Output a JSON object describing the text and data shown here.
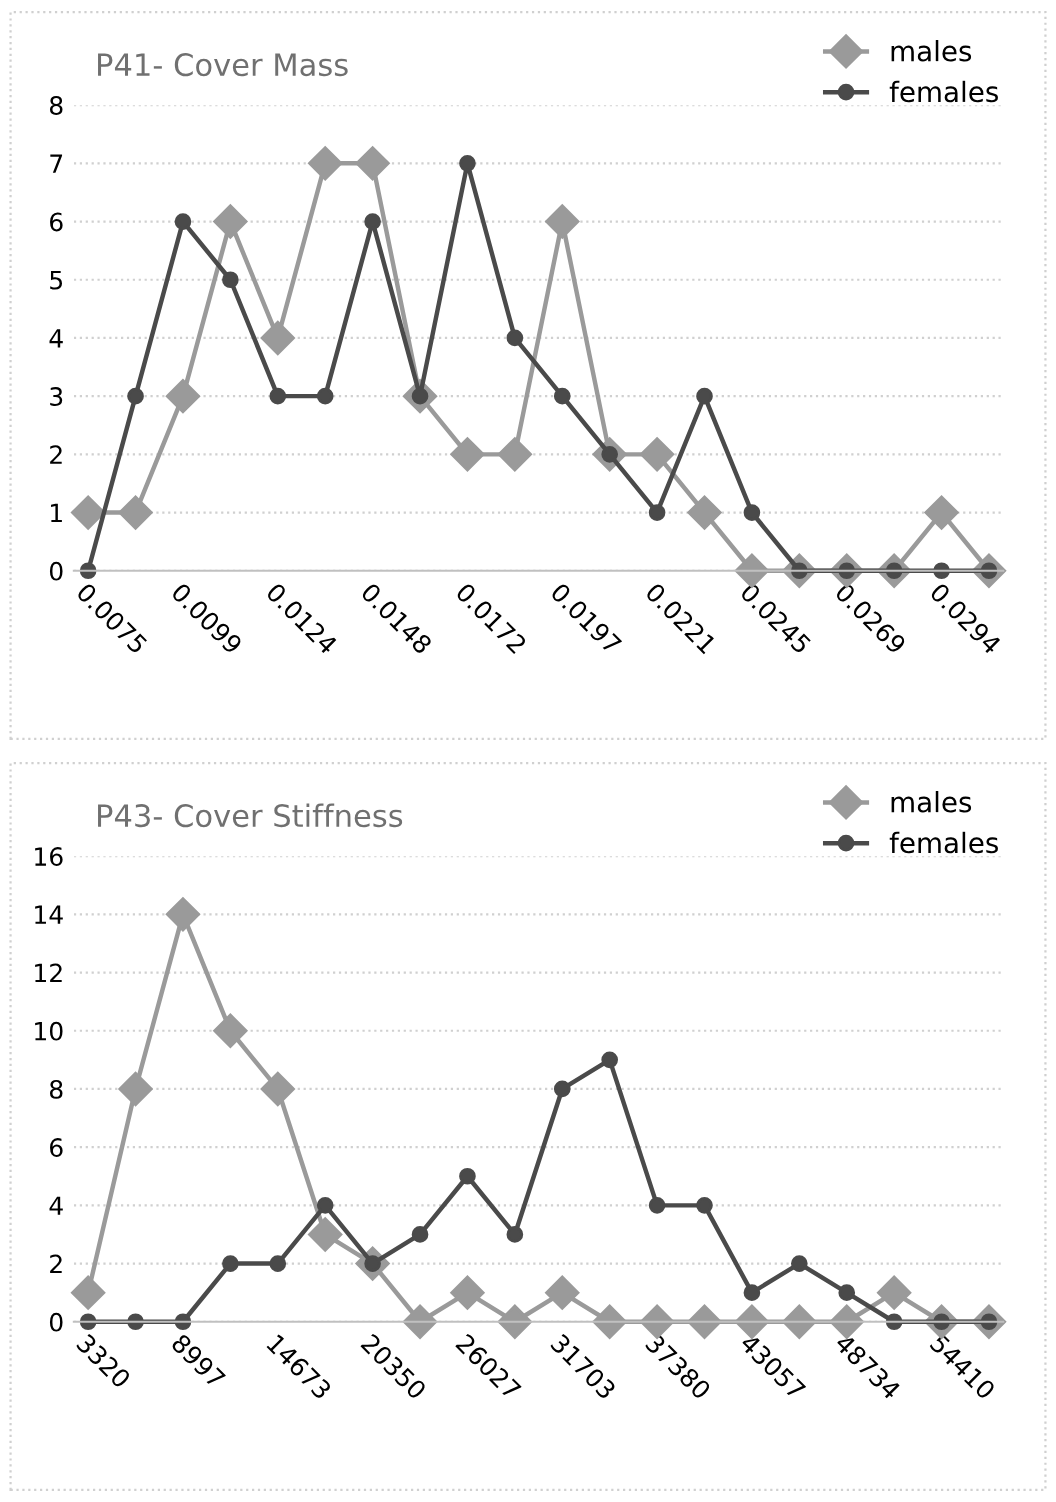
{
  "chart_data": [
    {
      "type": "line",
      "title": "P41- Cover Mass",
      "categories": [
        "0.0075",
        null,
        "0.0099",
        null,
        "0.0124",
        null,
        "0.0148",
        null,
        "0.0172",
        null,
        "0.0197",
        null,
        "0.0221",
        null,
        "0.0245",
        null,
        "0.0269",
        null,
        "0.0294",
        null
      ],
      "series": [
        {
          "name": "males",
          "color": "#9a9a9a",
          "marker": "diamond",
          "values": [
            1,
            1,
            3,
            6,
            4,
            7,
            7,
            3,
            2,
            2,
            6,
            2,
            2,
            1,
            0,
            0,
            0,
            0,
            1,
            0
          ]
        },
        {
          "name": "females",
          "color": "#4a4a4a",
          "marker": "circle",
          "values": [
            0,
            3,
            6,
            5,
            3,
            3,
            6,
            3,
            7,
            4,
            3,
            2,
            1,
            3,
            1,
            0,
            0,
            0,
            0,
            0
          ]
        }
      ],
      "ylim": [
        0,
        8
      ],
      "yticks": [
        0,
        1,
        2,
        3,
        4,
        5,
        6,
        7,
        8
      ],
      "grid": "y",
      "legend": "top right"
    },
    {
      "type": "line",
      "title": "P43- Cover Stiffness",
      "categories": [
        "3320",
        null,
        "8997",
        null,
        "14673",
        null,
        "20350",
        null,
        "26027",
        null,
        "31703",
        null,
        "37380",
        null,
        "43057",
        null,
        "48734",
        null,
        "54410",
        null
      ],
      "series": [
        {
          "name": "males",
          "color": "#9a9a9a",
          "marker": "diamond",
          "values": [
            1,
            8,
            14,
            10,
            8,
            3,
            2,
            0,
            1,
            0,
            1,
            0,
            0,
            0,
            0,
            0,
            0,
            1,
            0,
            0
          ]
        },
        {
          "name": "females",
          "color": "#4a4a4a",
          "marker": "circle",
          "values": [
            0,
            0,
            0,
            2,
            2,
            4,
            2,
            3,
            5,
            3,
            8,
            9,
            4,
            4,
            1,
            2,
            1,
            0,
            0,
            0
          ]
        }
      ],
      "ylim": [
        0,
        16
      ],
      "yticks": [
        0,
        2,
        4,
        6,
        8,
        10,
        12,
        14,
        16
      ],
      "grid": "y",
      "legend": "top right"
    }
  ]
}
